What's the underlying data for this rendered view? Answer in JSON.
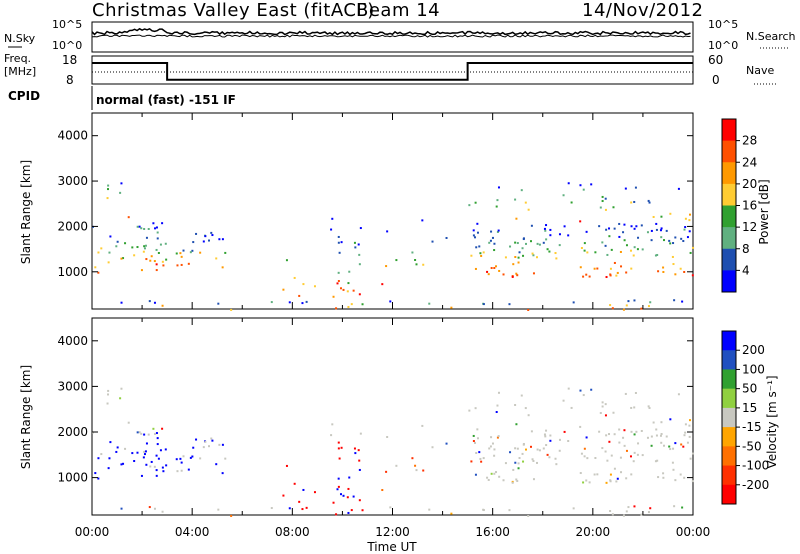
{
  "header": {
    "station": "Christmas Valley East (fitACF)",
    "beam": "Beam 14",
    "date": "14/Nov/2012"
  },
  "colors": {
    "axis": "#000000",
    "background": "#ffffff"
  },
  "chart_data": [
    {
      "type": "line",
      "name": "noise",
      "left_label": "N.Sky",
      "right_label": "N.Search",
      "left_ticks": [
        "10^5",
        "10^0"
      ],
      "right_ticks": [
        "10^5",
        "10^0"
      ],
      "ylog": true
    },
    {
      "type": "line",
      "name": "frequency-nave",
      "left_label_lines": [
        "Freq.",
        "[MHz]"
      ],
      "right_label": "Nave",
      "left_ticks": [
        "18",
        "8"
      ],
      "right_ticks": [
        "60",
        "0"
      ],
      "ylim_left": [
        8,
        18
      ],
      "ylim_right": [
        0,
        60
      ],
      "freq_steps": [
        {
          "from_h": 0,
          "to_h": 3,
          "mhz": 15.5
        },
        {
          "from_h": 3,
          "to_h": 15,
          "mhz": 9.5
        },
        {
          "from_h": 15,
          "to_h": 24,
          "mhz": 15.5
        }
      ]
    },
    {
      "type": "table",
      "name": "cpid",
      "label": "CPID",
      "value": "normal (fast) -151 IF"
    },
    {
      "type": "heatmap",
      "name": "power",
      "ylabel": "Slant Range [km]",
      "xlim_hours": [
        0,
        24
      ],
      "ylim_km": [
        180,
        4500
      ],
      "yticks": [
        "4000",
        "3000",
        "2000",
        "1000"
      ],
      "colorbar_label": "Power [dB]",
      "colorbar_ticks": [
        "28",
        "24",
        "20",
        "16",
        "12",
        "8",
        "4"
      ],
      "colorbar_colors": [
        "#ff0000",
        "#ff5000",
        "#ff9900",
        "#ffcc33",
        "#30a030",
        "#60b080",
        "#1e4fb0",
        "#0000ff"
      ]
    },
    {
      "type": "heatmap",
      "name": "velocity",
      "ylabel": "Slant Range [km]",
      "xlim_hours": [
        0,
        24
      ],
      "ylim_km": [
        180,
        4500
      ],
      "yticks": [
        "4000",
        "3000",
        "2000",
        "1000"
      ],
      "colorbar_label": "Velocity [m s⁻¹]",
      "colorbar_ticks": [
        "200",
        "100",
        "50",
        "15",
        "-15",
        "-50",
        "-100",
        "-200"
      ],
      "colorbar_colors": [
        "#0000ff",
        "#2050c0",
        "#30a030",
        "#90d040",
        "#c8c8c0",
        "#ffa500",
        "#ff7000",
        "#ff3000",
        "#ff0000"
      ]
    }
  ],
  "xaxis": {
    "label": "Time UT",
    "ticks": [
      "00:00",
      "04:00",
      "08:00",
      "12:00",
      "16:00",
      "20:00",
      "00:00"
    ]
  }
}
